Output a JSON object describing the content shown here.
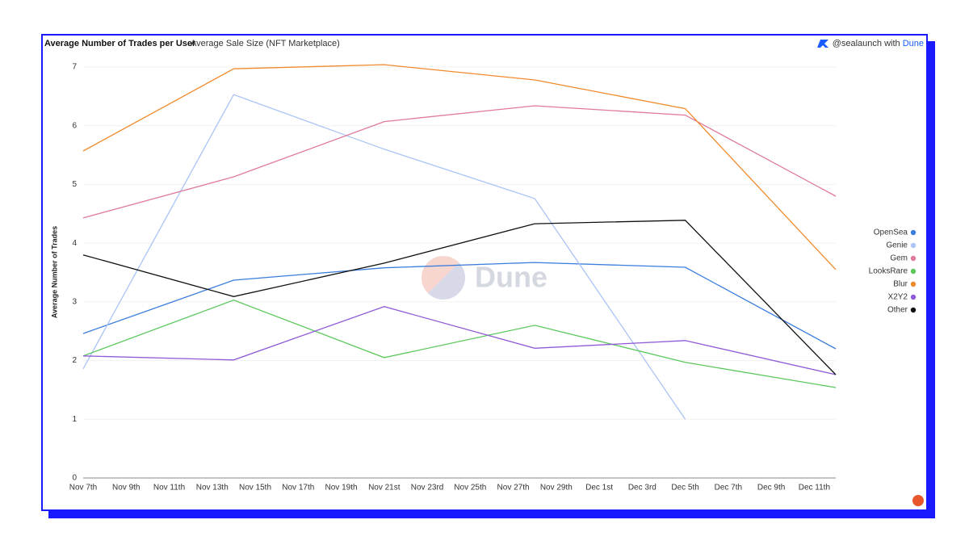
{
  "header": {
    "tabs": [
      "Average Number of Trades per User",
      "Average Sale Size (NFT Marketplace)"
    ],
    "credit_user": "@sealaunch",
    "credit_with": "with",
    "credit_brand": "Dune"
  },
  "chart_data": {
    "type": "line",
    "y_label": "Average Number of Trades",
    "watermark": "Dune",
    "x": [
      "Nov 7th",
      "Nov 14th",
      "Nov 21st",
      "Nov 28th",
      "Dec 5th",
      "Dec 12th"
    ],
    "xticks": [
      "Nov 7th",
      "Nov 9th",
      "Nov 11th",
      "Nov 13th",
      "Nov 15th",
      "Nov 17th",
      "Nov 19th",
      "Nov 21st",
      "Nov 23rd",
      "Nov 25th",
      "Nov 27th",
      "Nov 29th",
      "Dec 1st",
      "Dec 3rd",
      "Dec 5th",
      "Dec 7th",
      "Dec 9th",
      "Dec 11th"
    ],
    "ylim": [
      0,
      7.2
    ],
    "yticks": [
      0,
      1,
      2,
      3,
      4,
      5,
      6,
      7
    ],
    "grid": true,
    "legend": "right",
    "series": [
      {
        "name": "OpenSea",
        "color": "#3b7ddd",
        "values": [
          2.46,
          3.37,
          3.58,
          3.67,
          3.59,
          2.2
        ]
      },
      {
        "name": "Genie",
        "color": "#a9c4f5",
        "values": [
          1.86,
          6.53,
          5.6,
          4.76,
          1.0,
          null
        ]
      },
      {
        "name": "Gem",
        "color": "#e07a9a",
        "values": [
          4.43,
          5.13,
          6.07,
          6.34,
          6.18,
          4.8
        ]
      },
      {
        "name": "LooksRare",
        "color": "#5cc85c",
        "values": [
          2.08,
          3.03,
          2.05,
          2.6,
          1.97,
          1.54
        ]
      },
      {
        "name": "Blur",
        "color": "#f08a2c",
        "values": [
          5.57,
          6.97,
          7.04,
          6.78,
          6.29,
          3.55
        ]
      },
      {
        "name": "X2Y2",
        "color": "#8f5bd6",
        "values": [
          2.08,
          2.01,
          2.92,
          2.21,
          2.34,
          1.76
        ]
      },
      {
        "name": "Other",
        "color": "#111111",
        "values": [
          3.8,
          3.09,
          3.66,
          4.33,
          4.39,
          1.76
        ]
      }
    ]
  }
}
